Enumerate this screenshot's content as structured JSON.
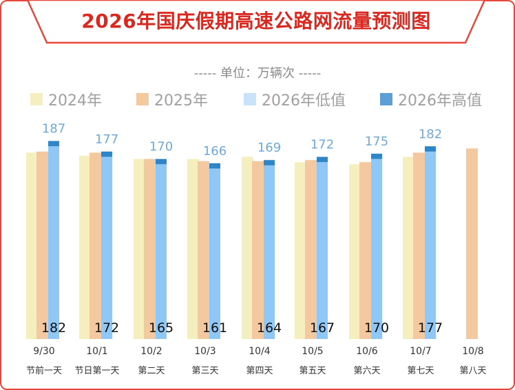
{
  "title": "2026年国庆假期高速公路网流量预测图",
  "unit_label": "单位：万辆次",
  "colors": {
    "border": "#e8463a",
    "title": "#d9281f",
    "y2024": "#f5eebf",
    "y2025": "#f5c9a0",
    "y2026low": "#8fc7f7",
    "y2026high": "#2e86c8",
    "high_label": "#6fa9d8"
  },
  "chart_data": {
    "type": "bar",
    "categories": [
      "9/30",
      "10/1",
      "10/2",
      "10/3",
      "10/4",
      "10/5",
      "10/6",
      "10/7",
      "10/8"
    ],
    "subcategories": [
      "节前一天",
      "节日第一天",
      "第二天",
      "第三天",
      "第四天",
      "第五天",
      "第六天",
      "第七天",
      "第八天"
    ],
    "series": [
      {
        "name": "2024年",
        "values": [
          176,
          173,
          170,
          170,
          172,
          167,
          165,
          172,
          null
        ]
      },
      {
        "name": "2025年",
        "values": [
          177,
          176,
          170,
          168,
          168,
          169,
          167,
          176,
          180
        ]
      },
      {
        "name": "2026年低值",
        "values": [
          182,
          172,
          165,
          161,
          164,
          167,
          170,
          177,
          null
        ]
      },
      {
        "name": "2026年高值",
        "values": [
          187,
          177,
          170,
          166,
          169,
          172,
          175,
          182,
          null
        ]
      }
    ],
    "low_labels": [
      "182",
      "172",
      "165",
      "161",
      "164",
      "167",
      "170",
      "177",
      ""
    ],
    "high_labels": [
      "187",
      "177",
      "170",
      "166",
      "169",
      "172",
      "175",
      "182",
      ""
    ],
    "ylim": [
      0,
      200
    ],
    "grid": false,
    "legend_position": "top"
  }
}
